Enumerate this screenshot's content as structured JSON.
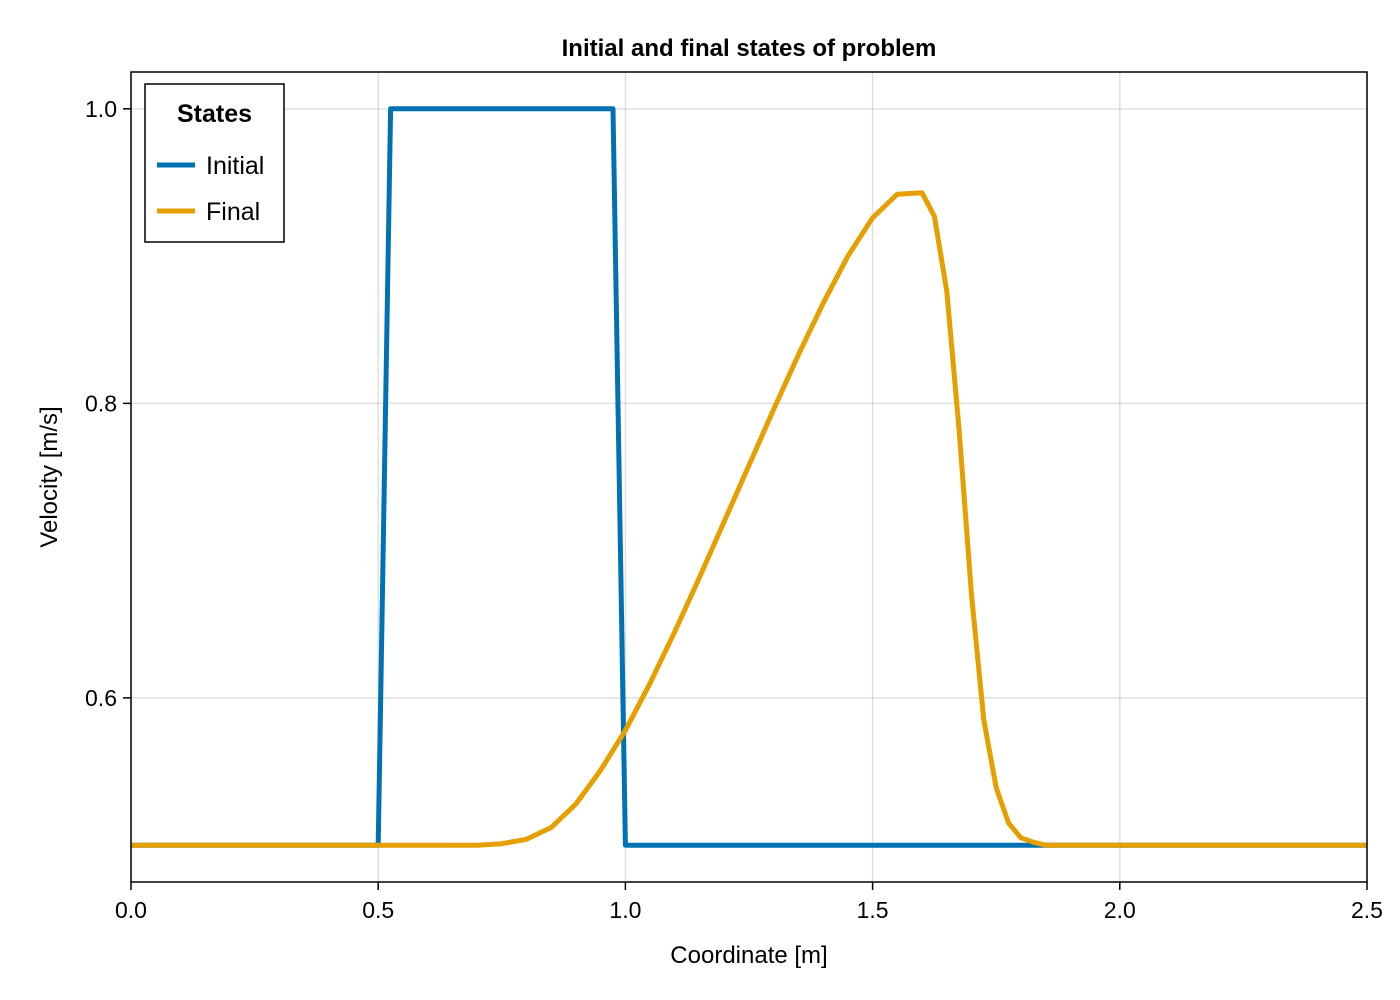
{
  "chart_data": {
    "type": "line",
    "title": "Initial and final states of problem",
    "xlabel": "Coordinate [m]",
    "ylabel": "Velocity [m/s]",
    "xlim": [
      0,
      2.5
    ],
    "ylim": [
      0.475,
      1.025
    ],
    "grid": true,
    "legend": {
      "title": "States",
      "placement": "top-left"
    },
    "x_ticks": [
      {
        "value": 0.0,
        "label": "0.0"
      },
      {
        "value": 0.5,
        "label": "0.5"
      },
      {
        "value": 1.0,
        "label": "1.0"
      },
      {
        "value": 1.5,
        "label": "1.5"
      },
      {
        "value": 2.0,
        "label": "2.0"
      },
      {
        "value": 2.5,
        "label": "2.5"
      }
    ],
    "y_ticks": [
      {
        "value": 0.6,
        "label": "0.6"
      },
      {
        "value": 0.8,
        "label": "0.8"
      },
      {
        "value": 1.0,
        "label": "1.0"
      }
    ],
    "series": [
      {
        "name": "Initial",
        "color": "#0072b2",
        "points": [
          [
            0.0,
            0.5
          ],
          [
            0.5,
            0.5
          ],
          [
            0.525,
            1.0
          ],
          [
            0.975,
            1.0
          ],
          [
            1.0,
            0.5
          ],
          [
            2.5,
            0.5
          ]
        ]
      },
      {
        "name": "Final",
        "color": "#e69f00",
        "points": [
          [
            0.0,
            0.5
          ],
          [
            0.7,
            0.5
          ],
          [
            0.75,
            0.501
          ],
          [
            0.8,
            0.504
          ],
          [
            0.85,
            0.512
          ],
          [
            0.9,
            0.528
          ],
          [
            0.95,
            0.551
          ],
          [
            1.0,
            0.578
          ],
          [
            1.05,
            0.61
          ],
          [
            1.1,
            0.645
          ],
          [
            1.15,
            0.682
          ],
          [
            1.2,
            0.72
          ],
          [
            1.25,
            0.758
          ],
          [
            1.3,
            0.796
          ],
          [
            1.35,
            0.833
          ],
          [
            1.4,
            0.868
          ],
          [
            1.45,
            0.9
          ],
          [
            1.5,
            0.926
          ],
          [
            1.55,
            0.942
          ],
          [
            1.6,
            0.943
          ],
          [
            1.625,
            0.927
          ],
          [
            1.65,
            0.876
          ],
          [
            1.675,
            0.782
          ],
          [
            1.7,
            0.67
          ],
          [
            1.725,
            0.585
          ],
          [
            1.75,
            0.539
          ],
          [
            1.775,
            0.515
          ],
          [
            1.8,
            0.505
          ],
          [
            1.825,
            0.502
          ],
          [
            1.85,
            0.5
          ],
          [
            2.5,
            0.5
          ]
        ]
      }
    ]
  }
}
